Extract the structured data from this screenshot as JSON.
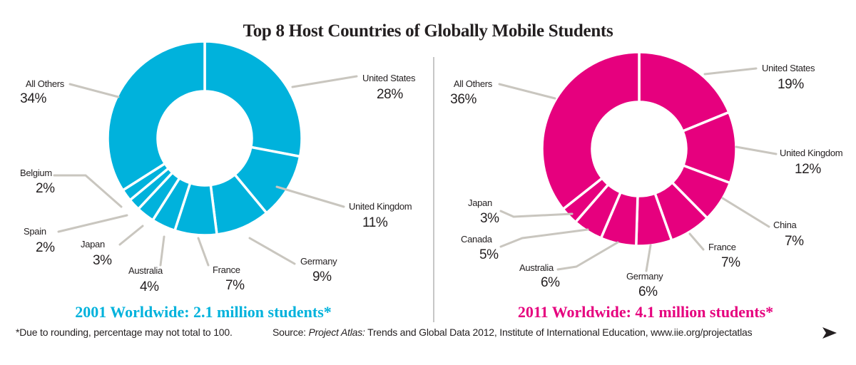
{
  "title": "Top 8 Host Countries of Globally Mobile Students",
  "chart_data": [
    {
      "type": "pie",
      "variant": "donut",
      "year": "2001",
      "caption": "2001 Worldwide: 2.1 million students*",
      "color": "#00b2dc",
      "slices": [
        {
          "name": "United States",
          "value": 28,
          "label": "28%"
        },
        {
          "name": "United Kingdom",
          "value": 11,
          "label": "11%"
        },
        {
          "name": "Germany",
          "value": 9,
          "label": "9%"
        },
        {
          "name": "France",
          "value": 7,
          "label": "7%"
        },
        {
          "name": "Australia",
          "value": 4,
          "label": "4%"
        },
        {
          "name": "Japan",
          "value": 3,
          "label": "3%"
        },
        {
          "name": "Spain",
          "value": 2,
          "label": "2%"
        },
        {
          "name": "Belgium",
          "value": 2,
          "label": "2%"
        },
        {
          "name": "All Others",
          "value": 34,
          "label": "34%"
        }
      ]
    },
    {
      "type": "pie",
      "variant": "donut",
      "year": "2011",
      "caption": "2011 Worldwide: 4.1 million students*",
      "color": "#e6007e",
      "slices": [
        {
          "name": "United States",
          "value": 19,
          "label": "19%"
        },
        {
          "name": "United Kingdom",
          "value": 12,
          "label": "12%"
        },
        {
          "name": "China",
          "value": 7,
          "label": "7%"
        },
        {
          "name": "France",
          "value": 7,
          "label": "7%"
        },
        {
          "name": "Germany",
          "value": 6,
          "label": "6%"
        },
        {
          "name": "Australia",
          "value": 6,
          "label": "6%"
        },
        {
          "name": "Canada",
          "value": 5,
          "label": "5%"
        },
        {
          "name": "Japan",
          "value": 3,
          "label": "3%"
        },
        {
          "name": "All Others",
          "value": 36,
          "label": "36%"
        }
      ]
    }
  ],
  "footnote": "*Due to rounding, percentage may not total to 100.",
  "source": {
    "prefix": "Source: ",
    "publication": "Project Atlas:",
    "rest": " Trends and Global Data 2012, Institute of International Education, www.iie.org/projectatlas"
  },
  "colors": {
    "leader": "#c9c6bf",
    "divider": "#c7c7c7",
    "text": "#231f20"
  }
}
